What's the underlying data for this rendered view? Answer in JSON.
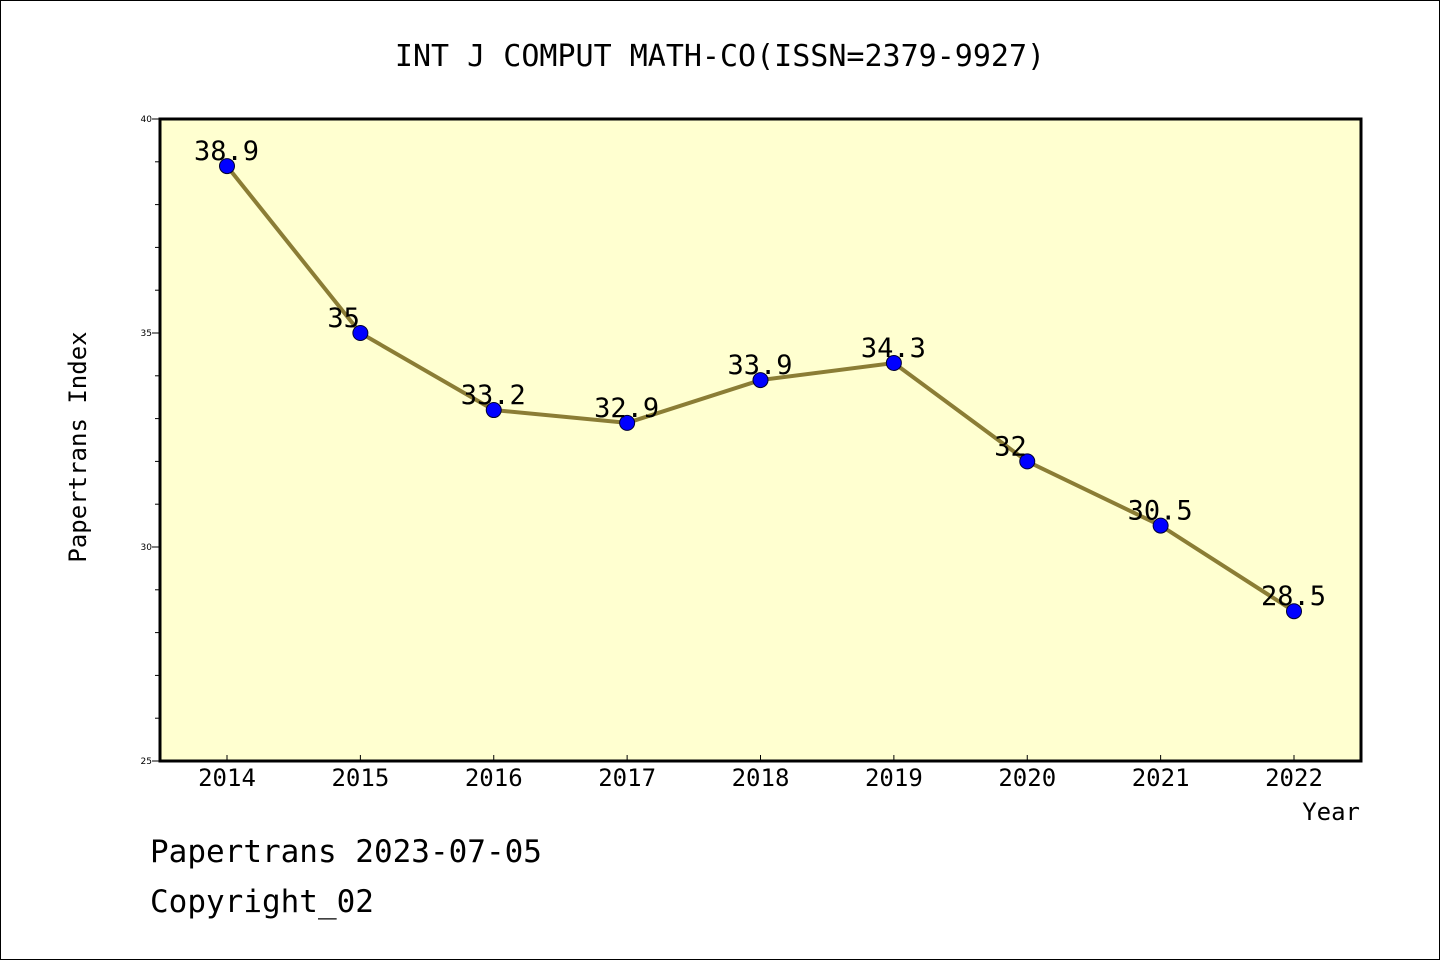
{
  "chart_data": {
    "type": "line",
    "title": "INT J COMPUT MATH-CO(ISSN=2379-9927)",
    "xlabel": "Year",
    "ylabel": "Papertrans Index",
    "categories": [
      "2014",
      "2015",
      "2016",
      "2017",
      "2018",
      "2019",
      "2020",
      "2021",
      "2022"
    ],
    "values": [
      38.9,
      35,
      33.2,
      32.9,
      33.9,
      34.3,
      32,
      30.5,
      28.5
    ],
    "data_labels": [
      "38.9",
      "35",
      "33.2",
      "32.9",
      "33.9",
      "34.3",
      "32",
      "30.5",
      "28.5"
    ],
    "ylim": [
      25,
      40
    ],
    "yticks": [
      "25",
      "30",
      "35",
      "40"
    ],
    "grid": false,
    "colors": {
      "line": "#8b7d35",
      "marker": "#0000ff",
      "plot_background": "#ffffd0"
    }
  },
  "footer": {
    "source": "Papertrans 2023-07-05",
    "copyright": "Copyright_02"
  }
}
